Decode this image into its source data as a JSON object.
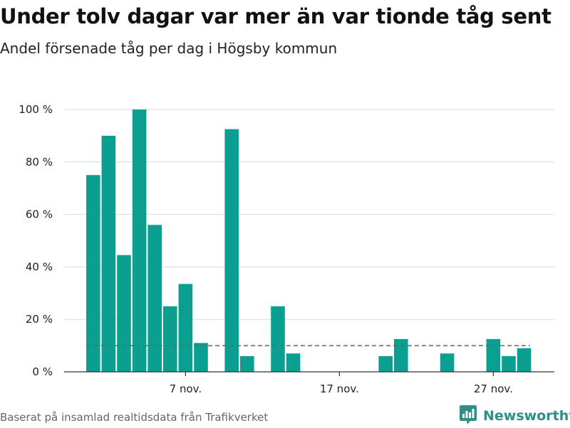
{
  "title": "Under tolv dagar var mer än var tionde tåg sent",
  "subtitle": "Andel försenade tåg per dag i Högsby kommun",
  "source": "Baserat på insamlad realtidsdata från Trafikverket",
  "brand": {
    "name": "Newsworthy",
    "icon": "newsworthy-logo-icon"
  },
  "colors": {
    "bar": "#0b9f91",
    "reference_line": "#666666",
    "grid": "#d9d9d9",
    "axis": "#333333",
    "brand": "#2d8f86"
  },
  "chart_data": {
    "type": "bar",
    "title": "Under tolv dagar var mer än var tionde tåg sent",
    "subtitle": "Andel försenade tåg per dag i Högsby kommun",
    "xlabel": "",
    "ylabel": "",
    "unit": "%",
    "x": [
      "2019-11-01",
      "2019-11-02",
      "2019-11-03",
      "2019-11-04",
      "2019-11-05",
      "2019-11-06",
      "2019-11-07",
      "2019-11-08",
      "2019-11-09",
      "2019-11-10",
      "2019-11-11",
      "2019-11-12",
      "2019-11-13",
      "2019-11-14",
      "2019-11-15",
      "2019-11-16",
      "2019-11-17",
      "2019-11-18",
      "2019-11-19",
      "2019-11-20",
      "2019-11-21",
      "2019-11-22",
      "2019-11-23",
      "2019-11-24",
      "2019-11-25",
      "2019-11-26",
      "2019-11-27",
      "2019-11-28",
      "2019-11-29",
      "2019-11-30"
    ],
    "values": [
      75,
      90,
      44.5,
      100,
      56,
      25,
      33.5,
      11,
      0,
      92.5,
      6,
      0,
      25,
      7,
      0,
      0,
      0,
      0,
      0,
      6,
      12.5,
      0,
      0,
      7,
      0,
      0,
      12.5,
      6,
      9,
      0
    ],
    "reference_line": 10,
    "ylim": [
      0,
      100
    ],
    "yticks": [
      0,
      20,
      40,
      60,
      80,
      100
    ],
    "ytick_labels": [
      "0 %",
      "20 %",
      "40 %",
      "60 %",
      "80 %",
      "100 %"
    ],
    "xticks": [
      "2019-11-07",
      "2019-11-17",
      "2019-11-27"
    ],
    "xtick_labels": [
      "7 nov.",
      "17 nov.",
      "27 nov."
    ],
    "grid": true,
    "legend": "none"
  }
}
